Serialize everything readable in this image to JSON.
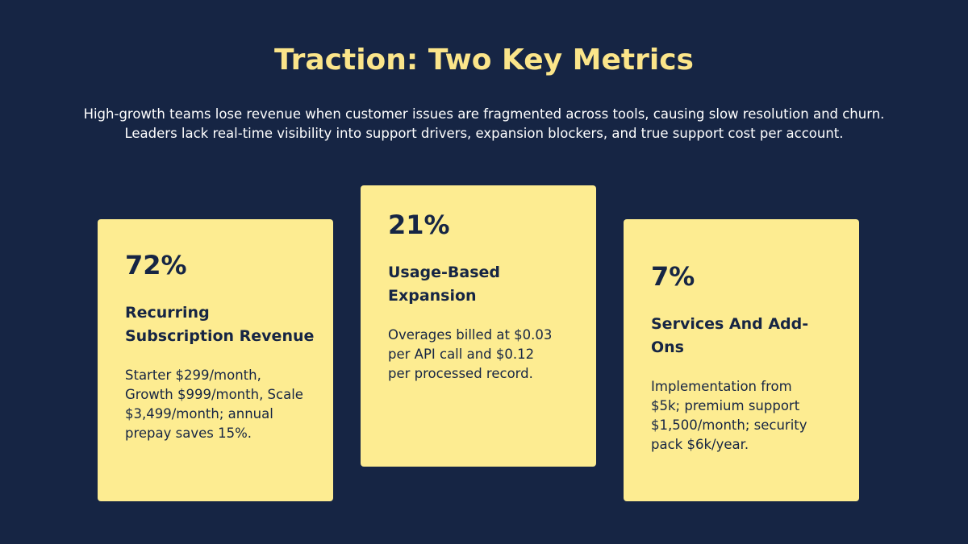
{
  "header": {
    "title": "Traction: Two Key Metrics",
    "subtitle_lines": [
      "High-growth teams lose revenue when customer issues are fragmented across tools, causing slow resolution and churn.",
      "Leaders lack real-time visibility into support drivers, expansion blockers, and true support cost per account."
    ]
  },
  "cards": [
    {
      "metric": "72%",
      "title_lines": [
        "Recurring",
        "Subscription Revenue"
      ],
      "body_lines": [
        "Starter $299/month,",
        "Growth $999/month, Scale",
        "$3,499/month; annual",
        "prepay saves 15%."
      ]
    },
    {
      "metric": "21%",
      "title_lines": [
        "Usage-Based",
        "Expansion"
      ],
      "body_lines": [
        "Overages billed at $0.03",
        "per API call and $0.12",
        "per processed record."
      ]
    },
    {
      "metric": "7%",
      "title_lines": [
        "Services And Add-",
        "Ons"
      ],
      "body_lines": [
        "Implementation from",
        "$5k; premium support",
        "$1,500/month; security",
        "pack $6k/year."
      ]
    }
  ]
}
